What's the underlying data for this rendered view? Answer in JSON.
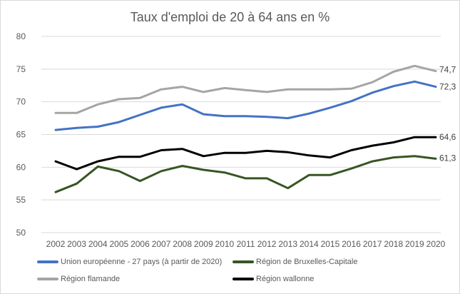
{
  "chart_data": {
    "type": "line",
    "title": "Taux d'emploi de 20 à 64 ans en %",
    "xlabel": "",
    "ylabel": "",
    "ylim": [
      50,
      80
    ],
    "yticks": [
      "50",
      "55",
      "60",
      "65",
      "70",
      "75",
      "80"
    ],
    "grid": true,
    "legend_position": "bottom",
    "x": [
      "2002",
      "2003",
      "2004",
      "2005",
      "2006",
      "2007",
      "2008",
      "2009",
      "2010",
      "2011",
      "2012",
      "2013",
      "2014",
      "2015",
      "2016",
      "2017",
      "2018",
      "2019",
      "2020"
    ],
    "series": [
      {
        "name": "Union européenne - 27 pays (à partir de 2020)",
        "color": "#4472c4",
        "values": [
          65.7,
          66.0,
          66.2,
          66.9,
          68.0,
          69.1,
          69.6,
          68.1,
          67.8,
          67.8,
          67.7,
          67.5,
          68.2,
          69.1,
          70.1,
          71.4,
          72.4,
          73.1,
          72.3
        ],
        "end_label": "72,3"
      },
      {
        "name": "Région de Bruxelles-Capitale",
        "color": "#375623",
        "values": [
          56.2,
          57.5,
          60.1,
          59.4,
          57.9,
          59.4,
          60.2,
          59.6,
          59.2,
          58.3,
          58.3,
          56.8,
          58.8,
          58.8,
          59.8,
          60.9,
          61.5,
          61.7,
          61.3
        ],
        "end_label": "61,3"
      },
      {
        "name": "Région flamande",
        "color": "#a5a5a5",
        "values": [
          68.3,
          68.3,
          69.6,
          70.4,
          70.6,
          71.9,
          72.3,
          71.5,
          72.1,
          71.8,
          71.5,
          71.9,
          71.9,
          71.9,
          72.0,
          73.0,
          74.6,
          75.5,
          74.7
        ],
        "end_label": "74,7"
      },
      {
        "name": "Région wallonne",
        "color": "#000000",
        "values": [
          60.9,
          59.7,
          60.9,
          61.6,
          61.6,
          62.6,
          62.8,
          61.7,
          62.2,
          62.2,
          62.5,
          62.3,
          61.8,
          61.5,
          62.6,
          63.3,
          63.8,
          64.6,
          64.6
        ],
        "end_label": "64,6"
      }
    ]
  }
}
